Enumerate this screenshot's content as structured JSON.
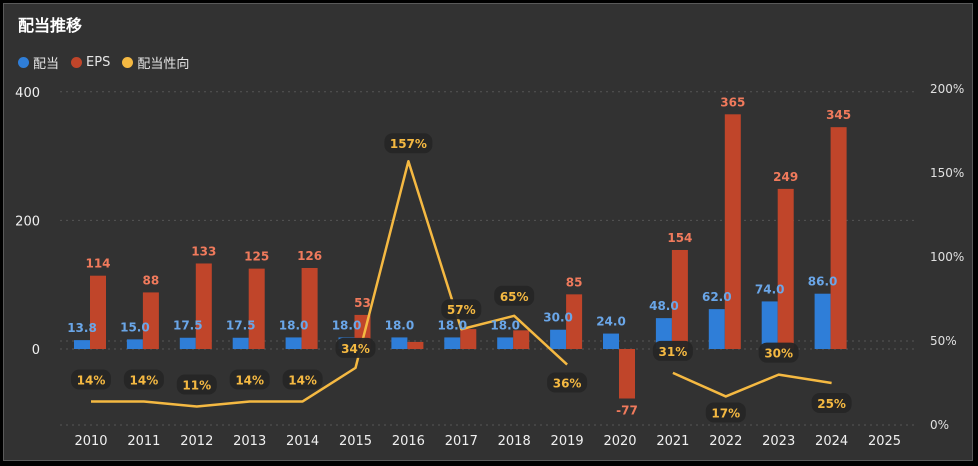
{
  "title": "配当推移",
  "legend": [
    {
      "name": "配当",
      "color": "#2f7ed8"
    },
    {
      "name": "EPS",
      "color": "#c0452a"
    },
    {
      "name": "配当性向",
      "color": "#f5b942"
    }
  ],
  "chart_data": {
    "type": "bar",
    "categories": [
      "2010",
      "2011",
      "2012",
      "2013",
      "2014",
      "2015",
      "2016",
      "2017",
      "2018",
      "2019",
      "2020",
      "2021",
      "2022",
      "2023",
      "2024",
      "2025"
    ],
    "series": [
      {
        "name": "配当",
        "type": "bar",
        "axis": "left",
        "values": [
          13.8,
          15.0,
          17.5,
          17.5,
          18.0,
          18.0,
          18.0,
          18.0,
          18.0,
          30.0,
          24.0,
          48.0,
          62.0,
          74.0,
          86.0,
          null
        ],
        "labels": [
          "13.8",
          "15.0",
          "17.5",
          "17.5",
          "18.0",
          "18.0",
          "18.0",
          "18.0",
          "18.0",
          "30.0",
          "24.0",
          "48.0",
          "62.0",
          "74.0",
          "86.0",
          ""
        ]
      },
      {
        "name": "EPS",
        "type": "bar",
        "axis": "left",
        "values": [
          114,
          88,
          133,
          125,
          126,
          53,
          11,
          31,
          29,
          85,
          -77,
          154,
          365,
          249,
          345,
          null
        ],
        "labels": [
          "114",
          "88",
          "133",
          "125",
          "126",
          "53",
          "",
          "",
          "",
          "85",
          "-77",
          "154",
          "365",
          "249",
          "345",
          ""
        ]
      },
      {
        "name": "配当性向",
        "type": "line",
        "axis": "right",
        "values": [
          14,
          14,
          11,
          14,
          14,
          34,
          157,
          57,
          65,
          36,
          null,
          31,
          17,
          30,
          25,
          null
        ],
        "labels": [
          "14%",
          "14%",
          "11%",
          "14%",
          "14%",
          "34%",
          "157%",
          "57%",
          "65%",
          "36%",
          "",
          "31%",
          "17%",
          "30%",
          "25%",
          ""
        ]
      }
    ],
    "y_left": {
      "ticks": [
        "400",
        "200",
        "0"
      ],
      "tick_values": [
        400,
        200,
        0
      ],
      "range": [
        -120,
        410
      ]
    },
    "y_right": {
      "ticks": [
        "200%",
        "150%",
        "100%",
        "50%",
        "0%"
      ],
      "tick_values": [
        200,
        150,
        100,
        50,
        0
      ],
      "range": [
        0,
        200
      ]
    },
    "grid": true
  }
}
